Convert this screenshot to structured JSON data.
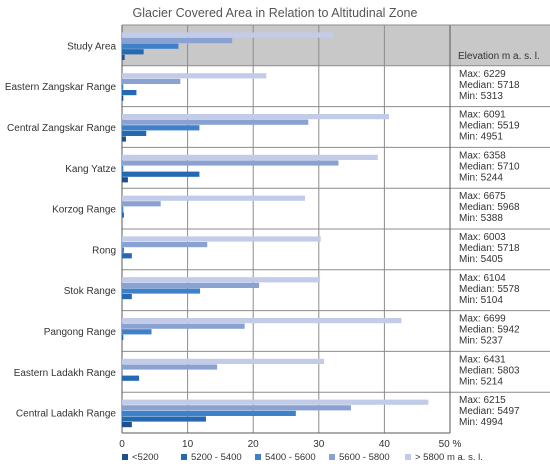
{
  "chart_data": {
    "type": "bar",
    "orientation": "horizontal",
    "title": "Glacier Covered Area in Relation to Altitudinal Zone",
    "xlim": [
      0,
      50
    ],
    "xticks": [
      "0",
      "10",
      "20",
      "30",
      "40",
      "50 %"
    ],
    "grid": true,
    "legend_position": "bottom",
    "categories": [
      "Study Area",
      "Eastern Zangskar Range",
      "Central Zangskar Range",
      "Kang Yatze",
      "Korzog Range",
      "Rong",
      "Stok Range",
      "Pangong Range",
      "Eastern Ladakh Range",
      "Central Ladakh Range"
    ],
    "highlighted_category": "Study Area",
    "series": [
      {
        "name": "<5200",
        "color": "#1f4e8c",
        "values": [
          0.4,
          0.2,
          0.6,
          0.9,
          0,
          0,
          0,
          0,
          0,
          1.5
        ]
      },
      {
        "name": "5200 - 5400",
        "color": "#2469b2",
        "values": [
          3.3,
          2.2,
          3.7,
          11.8,
          0.3,
          1.5,
          1.5,
          0.2,
          2.6,
          12.8
        ]
      },
      {
        "name": "5400 - 5600",
        "color": "#3f80c8",
        "values": [
          8.6,
          0.2,
          11.8,
          0.2,
          0.2,
          0.3,
          11.9,
          4.5,
          0,
          26.5
        ]
      },
      {
        "name": "5600 - 5800",
        "color": "#8aa2d2",
        "values": [
          16.8,
          8.9,
          28.4,
          33,
          5.9,
          13,
          20.9,
          18.7,
          14.5,
          34.9
        ]
      },
      {
        "name": "> 5800 m a. s. l.",
        "color": "#c2cce8",
        "values": [
          32.2,
          22,
          40.7,
          39,
          27.9,
          30.3,
          30.2,
          42.6,
          30.8,
          46.7
        ]
      }
    ],
    "elevation_header": "Elevation m a. s. l.",
    "elevation_stats": [
      null,
      {
        "max": "Max: 6229",
        "median": "Median: 5718",
        "min": "Min: 5313"
      },
      {
        "max": "Max: 6091",
        "median": "Median: 5519",
        "min": "Min: 4951"
      },
      {
        "max": "Max: 6358",
        "median": "Median: 5710",
        "min": "Min: 5244"
      },
      {
        "max": "Max: 6675",
        "median": "Median: 5968",
        "min": "Min: 5388"
      },
      {
        "max": "Max: 6003",
        "median": "Median: 5718",
        "min": "Min: 5405"
      },
      {
        "max": "Max: 6104",
        "median": "Median: 5578",
        "min": "Min: 5104"
      },
      {
        "max": "Max: 6699",
        "median": "Median: 5942",
        "min": "Min: 5237"
      },
      {
        "max": "Max: 6431",
        "median": "Median: 5803",
        "min": "Min: 5214"
      },
      {
        "max": "Max: 6215",
        "median": "Median: 5497",
        "min": "Min: 4994"
      }
    ]
  }
}
